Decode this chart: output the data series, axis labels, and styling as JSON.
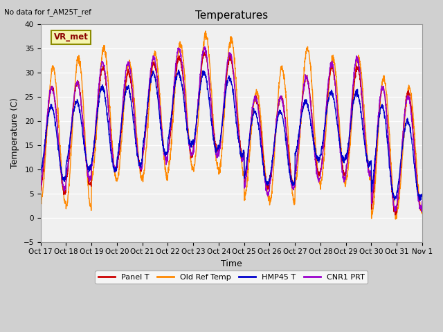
{
  "title": "Temperatures",
  "xlabel": "Time",
  "ylabel": "Temperature (C)",
  "no_data_text": "No data for f_AM25T_ref",
  "annotation_text": "VR_met",
  "ylim": [
    -5,
    40
  ],
  "yticks": [
    -5,
    0,
    5,
    10,
    15,
    20,
    25,
    30,
    35,
    40
  ],
  "xtick_labels": [
    "Oct 17",
    "Oct 18",
    "Oct 19",
    "Oct 20",
    "Oct 21",
    "Oct 22",
    "Oct 23",
    "Oct 24",
    "Oct 25",
    "Oct 26",
    "Oct 27",
    "Oct 28",
    "Oct 29",
    "Oct 30",
    "Oct 31",
    "Nov 1"
  ],
  "fig_bg_color": "#d0d0d0",
  "plot_bg_color": "#f0f0f0",
  "legend_entries": [
    "Panel T",
    "Old Ref Temp",
    "HMP45 T",
    "CNR1 PRT"
  ],
  "legend_colors": [
    "#cc0000",
    "#ff8800",
    "#0000cc",
    "#9900cc"
  ],
  "line_width": 1.0,
  "num_days": 15,
  "num_points_per_day": 144,
  "title_fontsize": 11,
  "axis_fontsize": 9,
  "tick_fontsize": 7.5,
  "legend_fontsize": 8
}
